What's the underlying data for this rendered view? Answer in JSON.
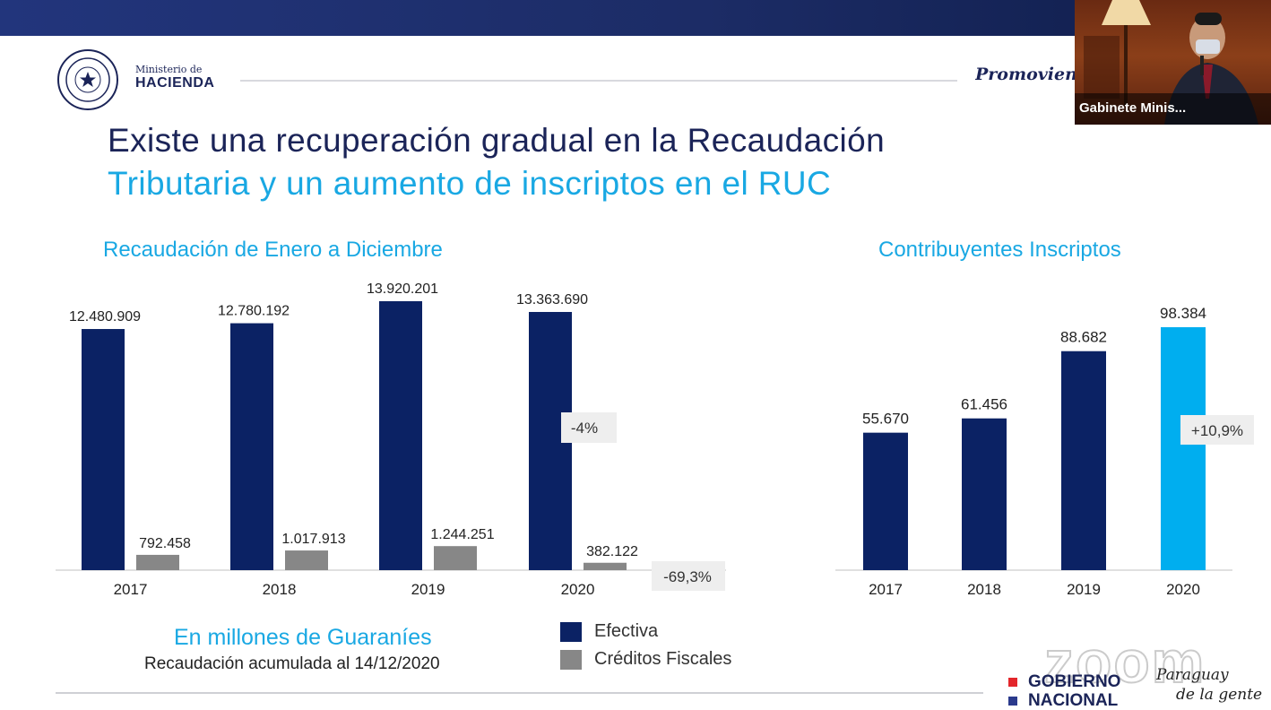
{
  "header": {
    "ministry_small": "Ministerio de",
    "ministry_big": "HACIENDA",
    "promo_text": "Promoviendo"
  },
  "video": {
    "participant_name": "Gabinete Minis..."
  },
  "title": {
    "line1": "Existe una recuperación gradual en la Recaudación",
    "line2": "Tributaria y un aumento de inscriptos en el RUC"
  },
  "footer": {
    "units": "En millones de Guaraníes",
    "date_note": "Recaudación acumulada al 14/12/2020",
    "zoom_watermark": "zoom",
    "gobierno_line1": "GOBIERNO",
    "gobierno_line2": "NACIONAL",
    "signature_line1": "Paraguay",
    "signature_line2": "de la gente"
  },
  "colors": {
    "dark_blue": "#0b2264",
    "light_blue": "#00aeef",
    "gray": "#878787",
    "title_blue": "#1b2458",
    "accent_cyan": "#19a8e3"
  },
  "chart_data": [
    {
      "type": "bar",
      "title": "Recaudación de Enero a Diciembre",
      "categories": [
        "2017",
        "2018",
        "2019",
        "2020"
      ],
      "series": [
        {
          "name": "Efectiva",
          "values": [
            12480909,
            12780192,
            13920201,
            13363690
          ],
          "labels": [
            "12.480.909",
            "12.780.192",
            "13.920.201",
            "13.363.690"
          ]
        },
        {
          "name": "Créditos Fiscales",
          "values": [
            792458,
            1017913,
            1244251,
            382122
          ],
          "labels": [
            "792.458",
            "1.017.913",
            "1.244.251",
            "382.122"
          ]
        }
      ],
      "annotations": [
        "-4%",
        "-69,3%"
      ],
      "legend_position": "bottom",
      "grid": false
    },
    {
      "type": "bar",
      "title": "Contribuyentes Inscriptos",
      "categories": [
        "2017",
        "2018",
        "2019",
        "2020"
      ],
      "values": [
        55670,
        61456,
        88682,
        98384
      ],
      "labels": [
        "55.670",
        "61.456",
        "88.682",
        "98.384"
      ],
      "annotations": [
        "+10,9%"
      ],
      "grid": false
    }
  ]
}
